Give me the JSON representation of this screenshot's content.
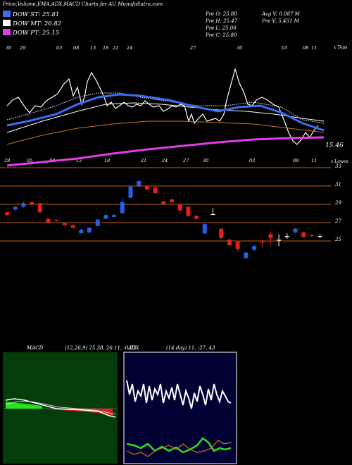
{
  "header": {
    "title": "Price,Volume,EMA,ADX,MACD Charts for AU MunafaSutra.com",
    "legend": [
      {
        "label": "DOW ST: 25.81",
        "color": "#3a6df0"
      },
      {
        "label": "DOW MT: 26.82",
        "color": "#ffffff"
      },
      {
        "label": "DOW PT: 25.15",
        "color": "#e23de8"
      }
    ],
    "stats": {
      "pre_o": "Pre  O: 25.80",
      "pre_h": "Pre  H: 25.47",
      "pre_l": "Pre  L: 25.00",
      "pre_c": "Pre  C: 25.80",
      "avg_v": "Avg V: 0.087 M",
      "pre_v": "Pre  V: 5.451 M"
    }
  },
  "top_panel": {
    "tag": "x Tops",
    "last_value": "15.46",
    "date_labels": [
      "30",
      "29",
      "05",
      "08",
      "13",
      "18",
      "21",
      "24",
      "27",
      "30",
      "03",
      "08",
      "11"
    ]
  },
  "mid_panel": {
    "tag": "x Lowes",
    "date_labels": [
      "29",
      "05",
      "08",
      "13",
      "18",
      "21",
      "24",
      "27",
      "30",
      "03",
      "08",
      "11"
    ],
    "levels": [
      33,
      31,
      29,
      27,
      25
    ],
    "level_labels": [
      "33",
      "31",
      "29",
      "27",
      "25"
    ]
  },
  "macd": {
    "label": "MACD",
    "params": "(12,26,9) 25.38, 26.11, -0.73"
  },
  "adx": {
    "label": "ADX",
    "params": "(14 day) 11, -27, 43"
  },
  "chart_data": {
    "type": "candlestick",
    "ylim": [
      24,
      34
    ],
    "candles": [
      {
        "o": 27.6,
        "c": 27.9,
        "h": 28.0,
        "l": 27.5,
        "up": false
      },
      {
        "o": 28.5,
        "c": 28.2,
        "h": 28.6,
        "l": 28.0,
        "up": true
      },
      {
        "o": 28.5,
        "c": 28.9,
        "h": 29.0,
        "l": 28.4,
        "up": true
      },
      {
        "o": 28.8,
        "c": 29.0,
        "h": 29.0,
        "l": 28.7,
        "up": false
      },
      {
        "o": 28.9,
        "c": 27.9,
        "h": 28.9,
        "l": 27.8,
        "up": false
      },
      {
        "o": 27.2,
        "c": 26.8,
        "h": 27.2,
        "l": 26.7,
        "up": false
      },
      {
        "o": 27.1,
        "c": 27.0,
        "h": 27.1,
        "l": 26.9,
        "up": false
      },
      {
        "o": 26.7,
        "c": 26.5,
        "h": 26.8,
        "l": 26.5,
        "up": false
      },
      {
        "o": 26.5,
        "c": 26.2,
        "h": 26.6,
        "l": 26.2,
        "up": false
      },
      {
        "o": 26.0,
        "c": 25.6,
        "h": 26.1,
        "l": 25.6,
        "up": true
      },
      {
        "o": 25.7,
        "c": 26.2,
        "h": 26.3,
        "l": 25.6,
        "up": true
      },
      {
        "o": 26.4,
        "c": 27.1,
        "h": 27.2,
        "l": 26.4,
        "up": true
      },
      {
        "o": 27.2,
        "c": 27.6,
        "h": 27.8,
        "l": 27.1,
        "up": true
      },
      {
        "o": 27.4,
        "c": 27.6,
        "h": 27.7,
        "l": 27.3,
        "up": true
      },
      {
        "o": 27.8,
        "c": 29.0,
        "h": 29.4,
        "l": 27.8,
        "up": true
      },
      {
        "o": 29.5,
        "c": 30.7,
        "h": 30.8,
        "l": 29.4,
        "up": true
      },
      {
        "o": 30.8,
        "c": 31.3,
        "h": 31.4,
        "l": 30.7,
        "up": true
      },
      {
        "o": 30.8,
        "c": 30.4,
        "h": 30.9,
        "l": 30.3,
        "up": false
      },
      {
        "o": 30.6,
        "c": 30.0,
        "h": 30.7,
        "l": 29.9,
        "up": false
      },
      {
        "o": 29.1,
        "c": 28.8,
        "h": 29.1,
        "l": 28.7,
        "up": false
      },
      {
        "o": 29.0,
        "c": 29.3,
        "h": 29.4,
        "l": 28.7,
        "up": false
      },
      {
        "o": 28.8,
        "c": 28.1,
        "h": 28.9,
        "l": 28.0,
        "up": false
      },
      {
        "o": 28.5,
        "c": 27.5,
        "h": 28.5,
        "l": 27.4,
        "up": false
      },
      {
        "o": 27.5,
        "c": 27.2,
        "h": 27.6,
        "l": 27.0,
        "up": false
      },
      {
        "o": 26.6,
        "c": 25.6,
        "h": 26.7,
        "l": 25.5,
        "up": true
      },
      {
        "o": 27.7,
        "c": 27.7,
        "h": 28.4,
        "l": 27.6,
        "up": false
      },
      {
        "o": 26.1,
        "c": 25.1,
        "h": 26.2,
        "l": 24.9,
        "up": false
      },
      {
        "o": 24.9,
        "c": 24.3,
        "h": 25.0,
        "l": 24.2,
        "up": false
      },
      {
        "o": 24.7,
        "c": 23.9,
        "h": 24.7,
        "l": 23.6,
        "up": false
      },
      {
        "o": 23.5,
        "c": 22.9,
        "h": 23.5,
        "l": 22.8,
        "up": true
      },
      {
        "o": 23.8,
        "c": 24.2,
        "h": 24.4,
        "l": 23.7,
        "up": true
      },
      {
        "o": 24.6,
        "c": 24.7,
        "h": 24.9,
        "l": 24.0,
        "up": false
      },
      {
        "o": 25.5,
        "c": 25.1,
        "h": 25.7,
        "l": 24.4,
        "up": false
      },
      {
        "o": 24.9,
        "c": 24.9,
        "h": 25.5,
        "l": 24.2,
        "up": false
      },
      {
        "o": 25.3,
        "c": 25.3,
        "h": 25.6,
        "l": 25.0,
        "up": false
      },
      {
        "o": 26.1,
        "c": 25.7,
        "h": 26.2,
        "l": 25.6,
        "up": true
      },
      {
        "o": 25.7,
        "c": 25.2,
        "h": 25.8,
        "l": 25.1,
        "up": false
      },
      {
        "o": 25.4,
        "c": 25.3,
        "h": 25.5,
        "l": 25.2,
        "up": false
      },
      {
        "o": 25.3,
        "c": 25.3,
        "h": 25.5,
        "l": 25.1,
        "up": false
      }
    ]
  },
  "colors": {
    "up": "#2a5de6",
    "down": "#e61e1e",
    "neutral": "#ffffff",
    "blue_ema": "#3a6df0",
    "magenta_ema": "#e23de8",
    "orange_ema": "#c8741a",
    "grid_orange": "#b85f10",
    "green": "#27e01f",
    "orange": "#d8731a"
  }
}
